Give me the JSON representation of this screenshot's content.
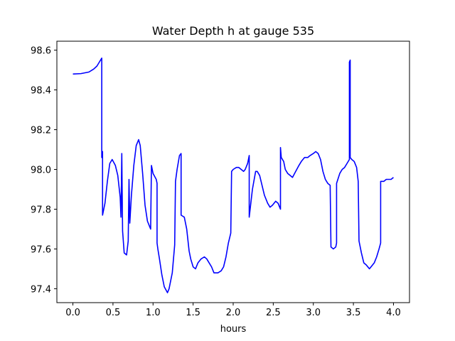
{
  "chart_data": {
    "type": "line",
    "title": "Water Depth h at gauge 535",
    "xlabel": "hours",
    "ylabel": "",
    "xlim": [
      -0.2,
      4.2
    ],
    "ylim": [
      97.33,
      98.645
    ],
    "xticks": [
      0.0,
      0.5,
      1.0,
      1.5,
      2.0,
      2.5,
      3.0,
      3.5,
      4.0
    ],
    "xtick_labels": [
      "0.0",
      "0.5",
      "1.0",
      "1.5",
      "2.0",
      "2.5",
      "3.0",
      "3.5",
      "4.0"
    ],
    "yticks": [
      97.4,
      97.6,
      97.8,
      98.0,
      98.2,
      98.4,
      98.6
    ],
    "ytick_labels": [
      "97.4",
      "97.6",
      "97.8",
      "98.0",
      "98.2",
      "98.4",
      "98.6"
    ],
    "grid": false,
    "series": [
      {
        "color": "#0000ff",
        "points": [
          [
            0.0,
            98.48
          ],
          [
            0.1,
            98.482
          ],
          [
            0.2,
            98.49
          ],
          [
            0.26,
            98.505
          ],
          [
            0.3,
            98.52
          ],
          [
            0.33,
            98.54
          ],
          [
            0.36,
            98.56
          ],
          [
            0.36,
            98.06
          ],
          [
            0.37,
            98.09
          ],
          [
            0.37,
            97.77
          ],
          [
            0.4,
            97.83
          ],
          [
            0.43,
            97.94
          ],
          [
            0.46,
            98.03
          ],
          [
            0.49,
            98.05
          ],
          [
            0.53,
            98.02
          ],
          [
            0.56,
            97.97
          ],
          [
            0.59,
            97.86
          ],
          [
            0.6,
            97.76
          ],
          [
            0.61,
            98.08
          ],
          [
            0.62,
            97.69
          ],
          [
            0.64,
            97.58
          ],
          [
            0.67,
            97.57
          ],
          [
            0.69,
            97.64
          ],
          [
            0.7,
            97.95
          ],
          [
            0.71,
            97.73
          ],
          [
            0.73,
            97.87
          ],
          [
            0.76,
            98.02
          ],
          [
            0.79,
            98.12
          ],
          [
            0.82,
            98.15
          ],
          [
            0.84,
            98.12
          ],
          [
            0.87,
            97.98
          ],
          [
            0.9,
            97.82
          ],
          [
            0.93,
            97.74
          ],
          [
            0.97,
            97.7
          ],
          [
            0.98,
            98.02
          ],
          [
            1.0,
            97.98
          ],
          [
            1.04,
            97.95
          ],
          [
            1.05,
            97.93
          ],
          [
            1.05,
            97.63
          ],
          [
            1.06,
            97.6
          ],
          [
            1.08,
            97.55
          ],
          [
            1.11,
            97.47
          ],
          [
            1.14,
            97.41
          ],
          [
            1.18,
            97.38
          ],
          [
            1.2,
            97.4
          ],
          [
            1.24,
            97.48
          ],
          [
            1.27,
            97.62
          ],
          [
            1.28,
            97.94
          ],
          [
            1.3,
            98.0
          ],
          [
            1.33,
            98.07
          ],
          [
            1.35,
            98.08
          ],
          [
            1.35,
            97.77
          ],
          [
            1.39,
            97.76
          ],
          [
            1.42,
            97.7
          ],
          [
            1.45,
            97.59
          ],
          [
            1.47,
            97.55
          ],
          [
            1.5,
            97.51
          ],
          [
            1.53,
            97.5
          ],
          [
            1.56,
            97.53
          ],
          [
            1.6,
            97.55
          ],
          [
            1.64,
            97.56
          ],
          [
            1.67,
            97.55
          ],
          [
            1.7,
            97.53
          ],
          [
            1.73,
            97.51
          ],
          [
            1.76,
            97.48
          ],
          [
            1.81,
            97.48
          ],
          [
            1.85,
            97.49
          ],
          [
            1.88,
            97.51
          ],
          [
            1.91,
            97.56
          ],
          [
            1.94,
            97.63
          ],
          [
            1.97,
            97.68
          ],
          [
            1.98,
            97.99
          ],
          [
            2.0,
            98.0
          ],
          [
            2.04,
            98.01
          ],
          [
            2.07,
            98.01
          ],
          [
            2.1,
            98.0
          ],
          [
            2.13,
            97.99
          ],
          [
            2.15,
            98.0
          ],
          [
            2.18,
            98.03
          ],
          [
            2.2,
            98.07
          ],
          [
            2.2,
            97.76
          ],
          [
            2.24,
            97.9
          ],
          [
            2.28,
            97.99
          ],
          [
            2.3,
            97.99
          ],
          [
            2.33,
            97.97
          ],
          [
            2.36,
            97.92
          ],
          [
            2.39,
            97.87
          ],
          [
            2.43,
            97.83
          ],
          [
            2.46,
            97.81
          ],
          [
            2.49,
            97.82
          ],
          [
            2.53,
            97.84
          ],
          [
            2.56,
            97.83
          ],
          [
            2.58,
            97.81
          ],
          [
            2.59,
            97.8
          ],
          [
            2.59,
            98.11
          ],
          [
            2.6,
            98.06
          ],
          [
            2.63,
            98.04
          ],
          [
            2.65,
            98.0
          ],
          [
            2.68,
            97.98
          ],
          [
            2.71,
            97.97
          ],
          [
            2.74,
            97.96
          ],
          [
            2.78,
            97.99
          ],
          [
            2.82,
            98.02
          ],
          [
            2.85,
            98.04
          ],
          [
            2.89,
            98.06
          ],
          [
            2.93,
            98.06
          ],
          [
            2.96,
            98.07
          ],
          [
            3.0,
            98.08
          ],
          [
            3.03,
            98.09
          ],
          [
            3.06,
            98.08
          ],
          [
            3.09,
            98.05
          ],
          [
            3.12,
            97.99
          ],
          [
            3.15,
            97.95
          ],
          [
            3.18,
            97.93
          ],
          [
            3.21,
            97.92
          ],
          [
            3.22,
            97.61
          ],
          [
            3.25,
            97.6
          ],
          [
            3.28,
            97.61
          ],
          [
            3.29,
            97.63
          ],
          [
            3.29,
            97.93
          ],
          [
            3.33,
            97.98
          ],
          [
            3.36,
            98.0
          ],
          [
            3.39,
            98.01
          ],
          [
            3.42,
            98.03
          ],
          [
            3.45,
            98.05
          ],
          [
            3.45,
            98.54
          ],
          [
            3.46,
            98.55
          ],
          [
            3.46,
            98.06
          ],
          [
            3.48,
            98.05
          ],
          [
            3.51,
            98.04
          ],
          [
            3.54,
            98.01
          ],
          [
            3.56,
            97.94
          ],
          [
            3.57,
            97.64
          ],
          [
            3.6,
            97.58
          ],
          [
            3.63,
            97.53
          ],
          [
            3.66,
            97.52
          ],
          [
            3.68,
            97.51
          ],
          [
            3.7,
            97.5
          ],
          [
            3.72,
            97.51
          ],
          [
            3.76,
            97.53
          ],
          [
            3.79,
            97.56
          ],
          [
            3.82,
            97.6
          ],
          [
            3.84,
            97.63
          ],
          [
            3.84,
            97.94
          ],
          [
            3.88,
            97.94
          ],
          [
            3.91,
            97.95
          ],
          [
            3.95,
            97.95
          ],
          [
            3.97,
            97.95
          ],
          [
            4.0,
            97.96
          ]
        ]
      }
    ]
  }
}
